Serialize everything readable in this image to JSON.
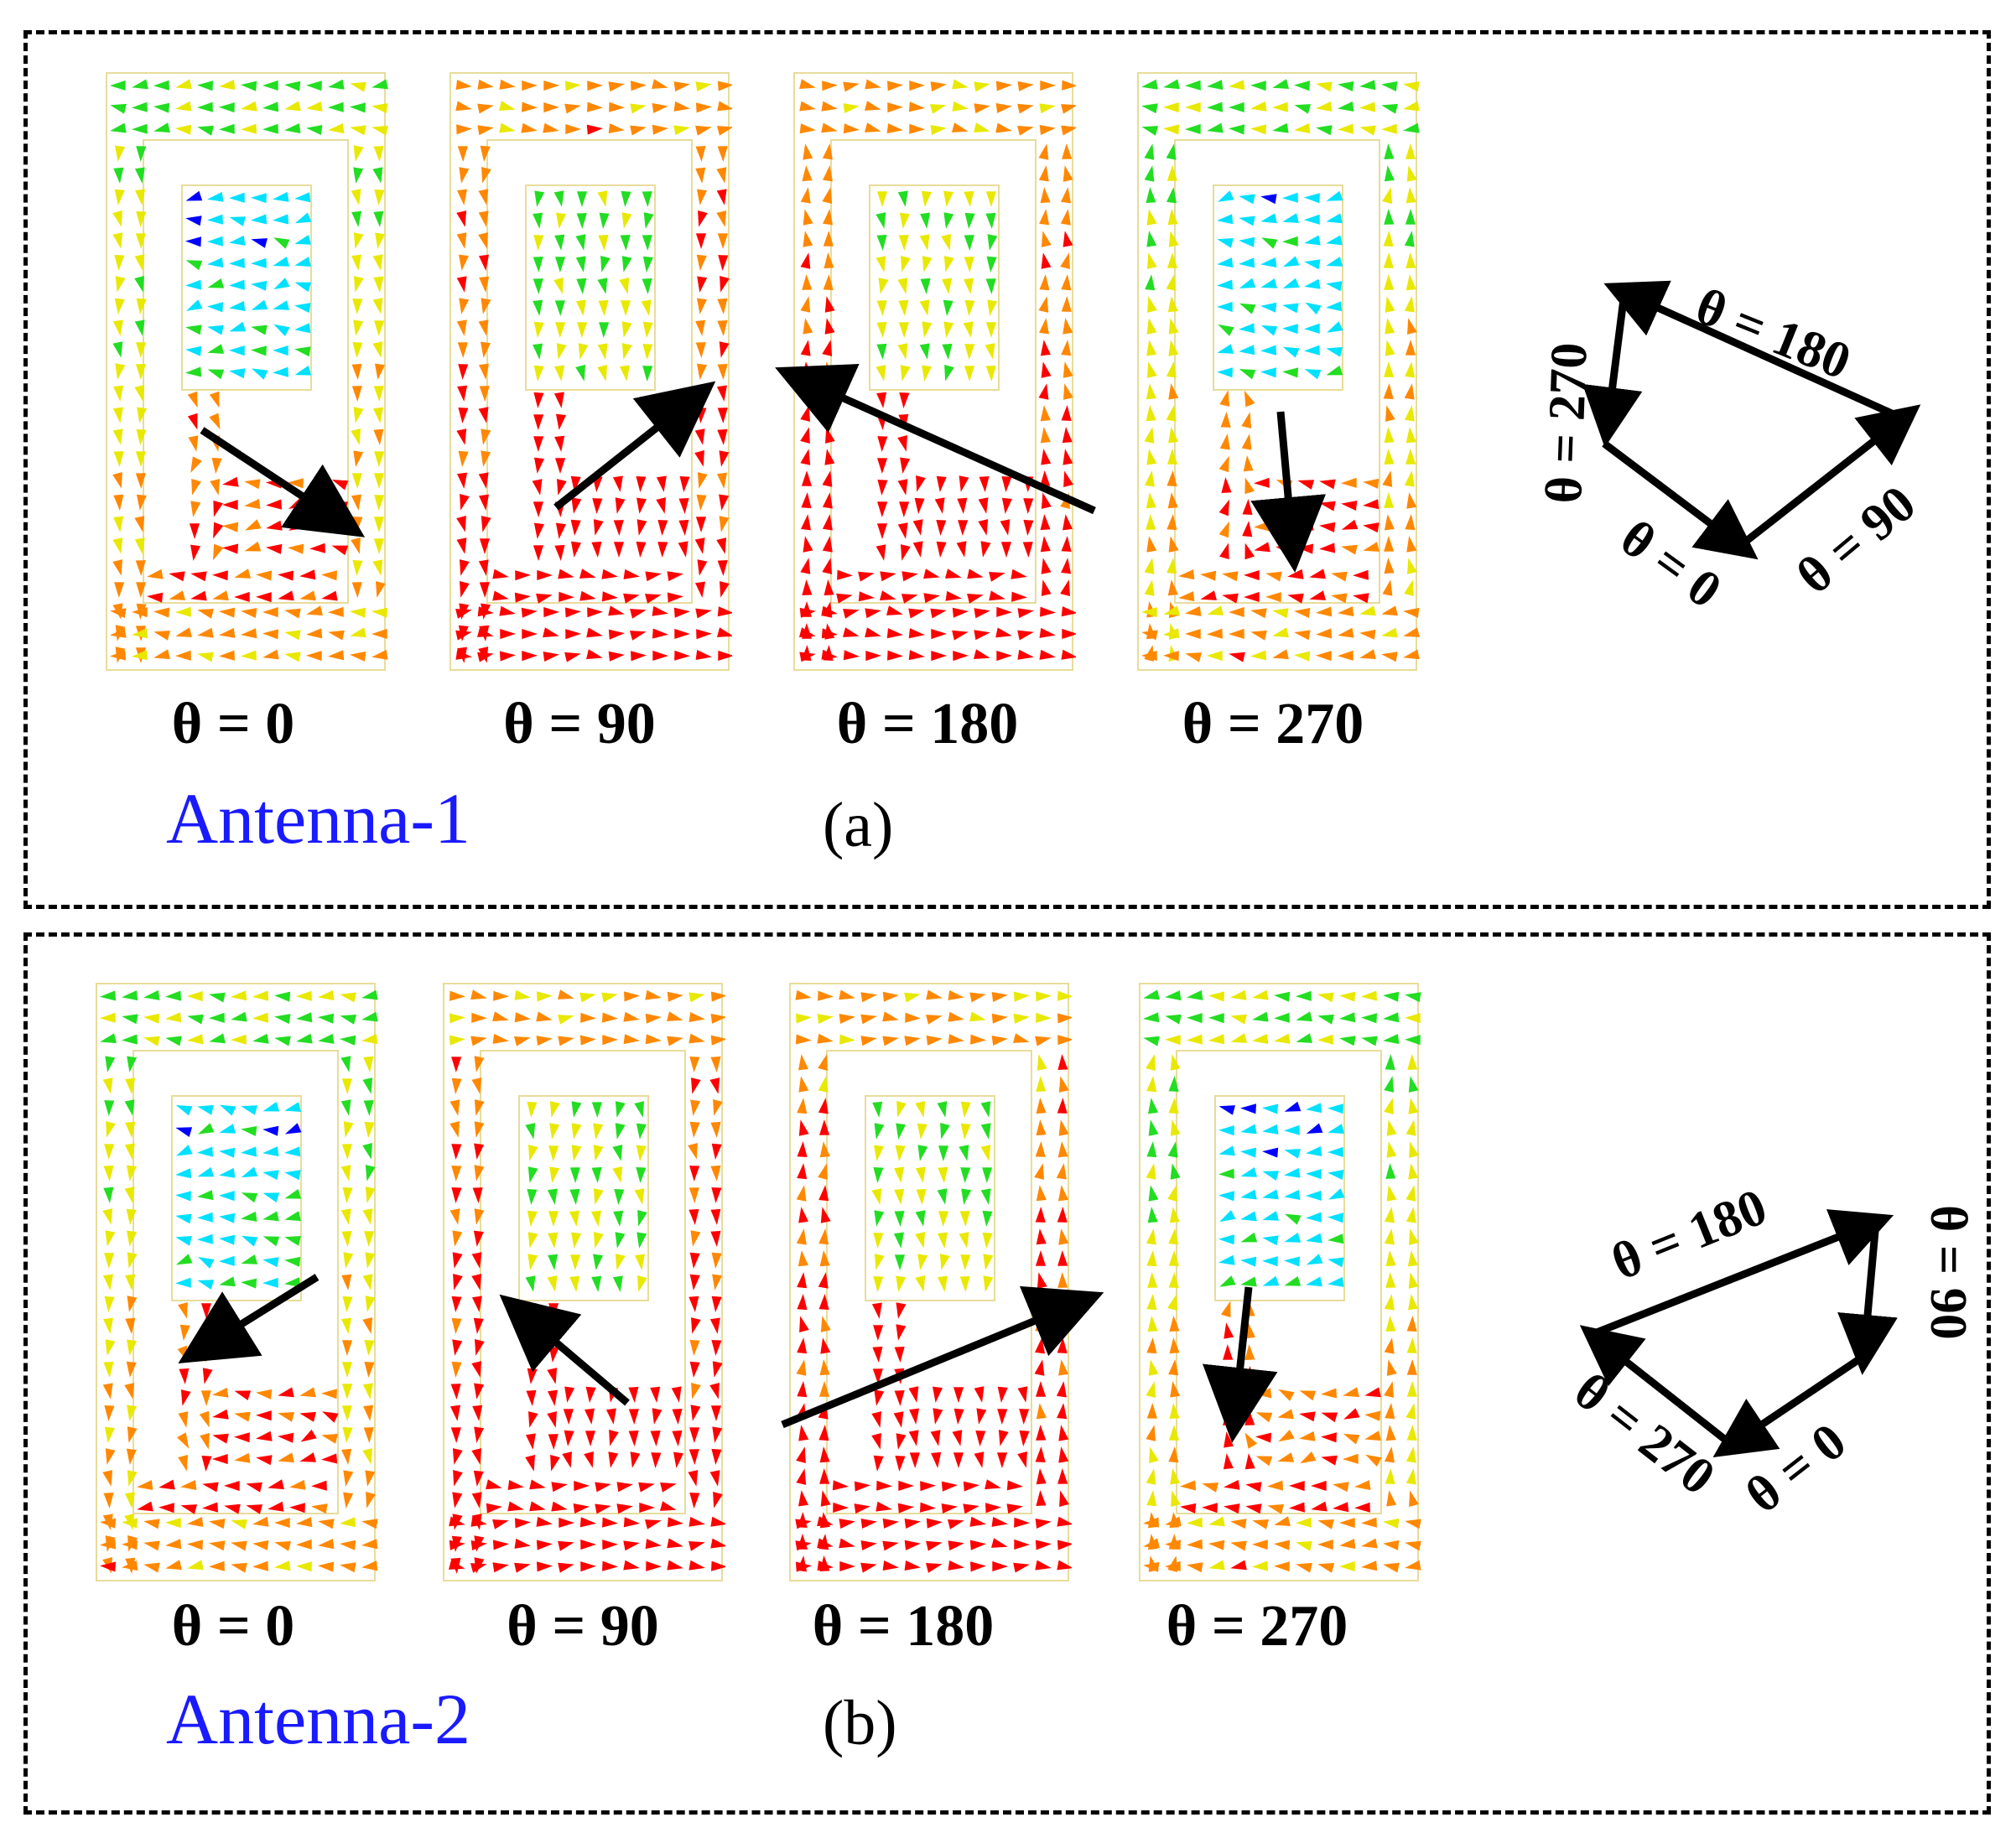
{
  "figure": {
    "panels": [
      {
        "id": "a",
        "sub_label": "(a)",
        "antenna_label": "Antenna-1",
        "antenna_color": "#1a1aff",
        "snapshots": [
          {
            "label": "θ = 0",
            "angle": 0
          },
          {
            "label": "θ = 90",
            "angle": 90
          },
          {
            "label": "θ = 180",
            "angle": 180
          },
          {
            "label": "θ = 270",
            "angle": 270
          }
        ],
        "rotation_diagram": {
          "labels": {
            "t0": "θ = 0",
            "t90": "θ = 90",
            "t180": "θ = 180",
            "t270": "θ = 270"
          }
        }
      },
      {
        "id": "b",
        "sub_label": "(b)",
        "antenna_label": "Antenna-2",
        "antenna_color": "#1a1aff",
        "snapshots": [
          {
            "label": "θ = 0",
            "angle": 0
          },
          {
            "label": "θ = 90",
            "angle": 90
          },
          {
            "label": "θ = 180",
            "angle": 180
          },
          {
            "label": "θ = 270",
            "angle": 270
          }
        ],
        "rotation_diagram": {
          "labels": {
            "t0": "θ = 0",
            "t90": "θ = 90",
            "t180": "θ = 180",
            "t270": "θ = 270"
          }
        }
      }
    ],
    "colors": {
      "low_current": "#0000ff",
      "mid_low": "#00e0ff",
      "mid": "#22dd22",
      "mid_high": "#e8e800",
      "high": "#ff8800",
      "max_current": "#ff0000",
      "outline": "#e8dc9a",
      "arrow": "#000000"
    }
  }
}
